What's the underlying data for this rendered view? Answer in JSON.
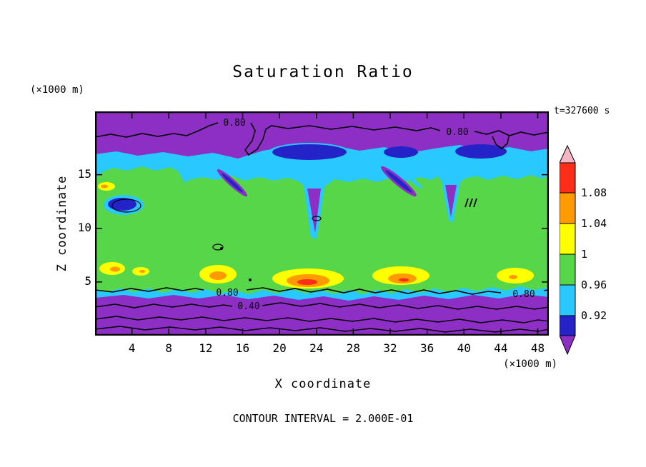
{
  "chart_data": {
    "type": "heatmap",
    "title": "Saturation Ratio",
    "xlabel": "X coordinate",
    "ylabel": "Z coordinate",
    "x_units_label": "(×1000 m)",
    "y_units_label": "(×1000 m)",
    "time_label": "t=327600 s",
    "contour_interval_label": "CONTOUR INTERVAL = 2.000E-01",
    "contour_interval": 0.2,
    "x_ticks": [
      4,
      8,
      12,
      16,
      20,
      24,
      28,
      32,
      36,
      40,
      44,
      48
    ],
    "y_ticks": [
      5,
      10,
      15
    ],
    "xlim": [
      0,
      49.2
    ],
    "ylim": [
      0,
      20.9
    ],
    "contour_labels": [
      "0.80",
      "0.80",
      "0.80",
      "0.80",
      "0.40"
    ],
    "colorbar": {
      "levels": [
        "1.08",
        "1.04",
        "1",
        "0.96",
        "0.92"
      ],
      "segment_colors": [
        "#fb2e1a",
        "#ff9a00",
        "#ffff00",
        "#57d649",
        "#29c9ff",
        "#2323c8"
      ],
      "arrow_top_color": "#f4b5c5",
      "arrow_bottom_color": "#8d2ec4"
    },
    "palette": {
      "purple": "#8d2ec4",
      "navy": "#2323c8",
      "cyan": "#29c9ff",
      "green": "#57d649",
      "yellow": "#ffff00",
      "orange": "#ff9a00",
      "red": "#fb2e1a",
      "pink": "#f4b5c5",
      "line": "#000000"
    }
  }
}
